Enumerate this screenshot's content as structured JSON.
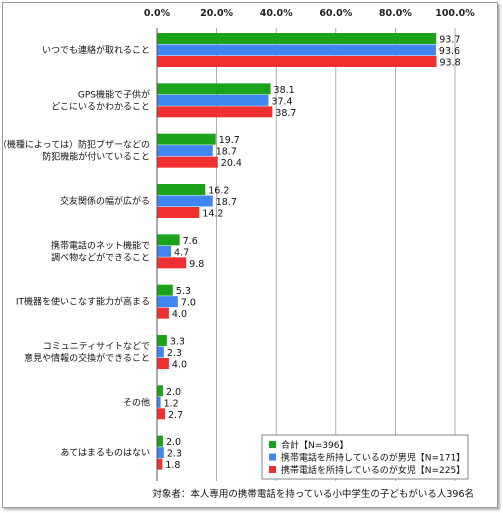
{
  "chart_data": {
    "type": "bar",
    "orientation": "horizontal",
    "xlim": [
      0,
      100
    ],
    "x_ticks": [
      "0.0%",
      "20.0%",
      "40.0%",
      "60.0%",
      "80.0%",
      "100.0%"
    ],
    "grid": true,
    "legend_position": "bottom-right",
    "categories": [
      [
        "いつでも連絡が取れること"
      ],
      [
        "GPS機能で子供が",
        "どこにいるかわかること"
      ],
      [
        "（機種によっては）防犯ブザーなどの",
        "防犯機能が付いていること"
      ],
      [
        "交友関係の幅が広がる"
      ],
      [
        "携帯電話のネット機能で",
        "調べ物などができること"
      ],
      [
        "IT機器を使いこなす能力が高まる"
      ],
      [
        "コミュニティサイトなどで",
        "意見や情報の交換ができること"
      ],
      [
        "その他"
      ],
      [
        "あてはまるものはない"
      ]
    ],
    "series": [
      {
        "name": "合計【N=396】",
        "color": "#1aa31a",
        "values": [
          93.7,
          38.1,
          19.7,
          16.2,
          7.6,
          5.3,
          3.3,
          2.0,
          2.0
        ]
      },
      {
        "name": "携帯電話を所持しているのが男児【N=171】",
        "color": "#3f86f0",
        "values": [
          93.6,
          37.4,
          18.7,
          18.7,
          4.7,
          7.0,
          2.3,
          1.2,
          2.3
        ]
      },
      {
        "name": "携帯電話を所持しているのが女児【N=225】",
        "color": "#f03030",
        "values": [
          93.8,
          38.7,
          20.4,
          14.2,
          9.8,
          4.0,
          4.0,
          2.7,
          1.8
        ]
      }
    ],
    "footnote": "対象者：本人専用の携帯電話を持っている小中学生の子どもがいる人396名"
  }
}
